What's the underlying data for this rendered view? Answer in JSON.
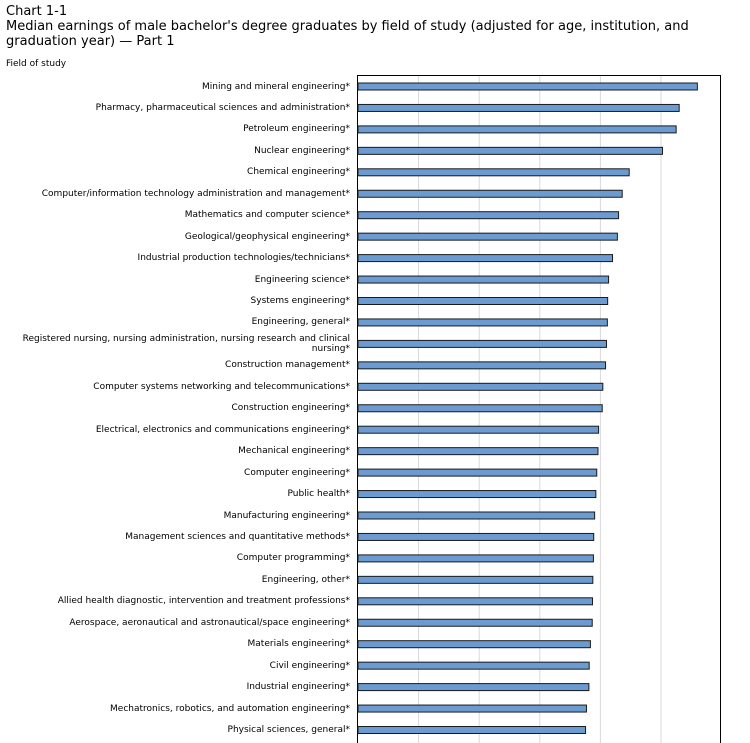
{
  "chart_number": "Chart 1-1",
  "chart_data": {
    "type": "bar",
    "orientation": "horizontal",
    "title": "Median earnings of male bachelor's degree graduates by field of study (adjusted for age, institution, and graduation year) — Part 1",
    "ylabel": "Field of study",
    "xlabel": "",
    "grid": true,
    "xlim": [
      0,
      120000
    ],
    "categories": [
      "Mining and mineral engineering*",
      "Pharmacy, pharmaceutical sciences and administration*",
      "Petroleum engineering*",
      "Nuclear engineering*",
      "Chemical engineering*",
      "Computer/information technology administration and management*",
      "Mathematics and computer science*",
      "Geological/geophysical engineering*",
      "Industrial production technologies/technicians*",
      "Engineering science*",
      "Systems engineering*",
      "Engineering, general*",
      "Registered nursing, nursing administration, nursing research and clinical nursing*",
      "Construction management*",
      "Computer systems networking and telecommunications*",
      "Construction engineering*",
      "Electrical, electronics and communications engineering*",
      "Mechanical engineering*",
      "Computer engineering*",
      "Public health*",
      "Manufacturing engineering*",
      "Management sciences and quantitative methods*",
      "Computer programming*",
      "Engineering, other*",
      "Allied health diagnostic, intervention and treatment professions*",
      "Aerospace, aeronautical and astronautical/space engineering*",
      "Materials engineering*",
      "Civil engineering*",
      "Industrial engineering*",
      "Mechatronics, robotics, and automation engineering*",
      "Physical sciences, general*"
    ],
    "values": [
      112000,
      106000,
      105000,
      100500,
      89500,
      87200,
      86000,
      85600,
      84000,
      82700,
      82400,
      82300,
      82000,
      81700,
      80800,
      80600,
      79400,
      79200,
      78800,
      78500,
      78100,
      77800,
      77700,
      77500,
      77400,
      77300,
      76700,
      76300,
      76200,
      75400,
      75100
    ],
    "bar_color": "#6b9bd1"
  }
}
